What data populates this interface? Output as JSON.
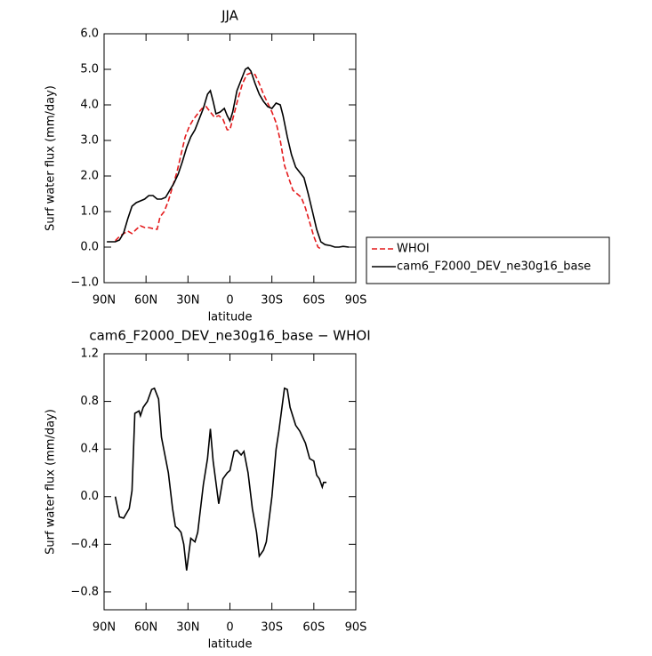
{
  "chart_data": [
    {
      "type": "line",
      "title": "JJA",
      "xlabel": "latitude",
      "ylabel": "Surf water flux (mm/day)",
      "xlim": [
        90,
        -90
      ],
      "xticks": [
        {
          "value": 90,
          "label": "90N"
        },
        {
          "value": 60,
          "label": "60N"
        },
        {
          "value": 30,
          "label": "30N"
        },
        0,
        {
          "value": -30,
          "label": "30S"
        },
        {
          "value": -60,
          "label": "60S"
        },
        {
          "value": -90,
          "label": "90S"
        }
      ],
      "ylim": [
        -1,
        6
      ],
      "yticks": [
        {
          "value": -1,
          "label": "−1.0"
        },
        {
          "value": 0,
          "label": "0.0"
        },
        {
          "value": 1,
          "label": "1.0"
        },
        {
          "value": 2,
          "label": "2.0"
        },
        {
          "value": 3,
          "label": "3.0"
        },
        {
          "value": 4,
          "label": "4.0"
        },
        {
          "value": 5,
          "label": "5.0"
        },
        {
          "value": 6,
          "label": "6.0"
        }
      ],
      "legend": "outside-right",
      "series": [
        {
          "name": "WHOI",
          "color": "#e41a1c",
          "dash": true,
          "x": [
            82,
            79,
            76,
            73,
            70,
            67,
            64,
            61,
            58,
            55,
            52,
            50,
            47,
            44,
            41,
            38,
            35,
            32,
            29,
            26,
            23,
            20,
            17,
            14,
            11,
            8,
            5,
            2,
            0,
            -3,
            -6,
            -9,
            -12,
            -15,
            -18,
            -21,
            -24,
            -27,
            -30,
            -33,
            -36,
            -39,
            -42,
            -45,
            -48,
            -51,
            -54,
            -57,
            -60,
            -63,
            -65
          ],
          "values": [
            0.18,
            0.3,
            0.38,
            0.45,
            0.38,
            0.5,
            0.6,
            0.55,
            0.55,
            0.52,
            0.5,
            0.85,
            1.0,
            1.3,
            1.7,
            2.1,
            2.6,
            3.1,
            3.4,
            3.6,
            3.75,
            3.9,
            3.95,
            3.8,
            3.65,
            3.7,
            3.6,
            3.3,
            3.3,
            3.75,
            4.2,
            4.6,
            4.85,
            4.9,
            4.85,
            4.6,
            4.3,
            4.05,
            3.8,
            3.5,
            3.0,
            2.3,
            1.95,
            1.6,
            1.5,
            1.4,
            1.1,
            0.7,
            0.3,
            0.0,
            -0.05
          ]
        },
        {
          "name": "cam6_F2000_DEV_ne30g16_base",
          "color": "#000000",
          "dash": false,
          "x": [
            88,
            82,
            79,
            76,
            73,
            70,
            67,
            64,
            61,
            58,
            55,
            52,
            49,
            46,
            43,
            40,
            37,
            34,
            31,
            28,
            25,
            22,
            19,
            16,
            14,
            12,
            10,
            7,
            4,
            2,
            0,
            -2,
            -5,
            -8,
            -11,
            -13,
            -15,
            -18,
            -21,
            -24,
            -27,
            -30,
            -33,
            -36,
            -38,
            -41,
            -44,
            -47,
            -50,
            -53,
            -56,
            -59,
            -62,
            -65,
            -68,
            -72,
            -75,
            -78,
            -81,
            -85
          ],
          "values": [
            0.15,
            0.15,
            0.2,
            0.4,
            0.8,
            1.15,
            1.25,
            1.3,
            1.35,
            1.45,
            1.45,
            1.35,
            1.35,
            1.4,
            1.6,
            1.8,
            2.05,
            2.4,
            2.8,
            3.1,
            3.3,
            3.6,
            3.9,
            4.3,
            4.4,
            4.1,
            3.75,
            3.8,
            3.9,
            3.7,
            3.55,
            3.8,
            4.4,
            4.7,
            5.0,
            5.05,
            4.95,
            4.6,
            4.3,
            4.1,
            3.95,
            3.9,
            4.05,
            4.0,
            3.7,
            3.1,
            2.6,
            2.25,
            2.1,
            1.95,
            1.5,
            1.0,
            0.5,
            0.15,
            0.07,
            0.04,
            0.0,
            0.0,
            0.02,
            0.0
          ]
        }
      ]
    },
    {
      "type": "line",
      "title": "cam6_F2000_DEV_ne30g16_base − WHOI",
      "xlabel": "latitude",
      "ylabel": "Surf water flux (mm/day)",
      "xlim": [
        90,
        -90
      ],
      "xticks": [
        {
          "value": 90,
          "label": "90N"
        },
        {
          "value": 60,
          "label": "60N"
        },
        {
          "value": 30,
          "label": "30N"
        },
        0,
        {
          "value": -30,
          "label": "30S"
        },
        {
          "value": -60,
          "label": "60S"
        },
        {
          "value": -90,
          "label": "90S"
        }
      ],
      "ylim": [
        -0.95,
        1.2
      ],
      "yticks": [
        {
          "value": -0.8,
          "label": "−0.8"
        },
        {
          "value": -0.4,
          "label": "−0.4"
        },
        {
          "value": 0,
          "label": "0.0"
        },
        0.4,
        0.8,
        1.2
      ],
      "color": "#000000",
      "x": [
        82,
        79,
        76,
        72,
        70,
        68,
        65,
        64,
        62,
        59,
        56,
        54,
        51,
        49,
        44,
        41,
        39,
        37,
        35,
        33,
        31,
        28,
        25,
        23,
        19,
        16,
        14,
        12,
        8,
        5,
        2,
        0,
        -3,
        -5,
        -8,
        -10,
        -13,
        -16,
        -19,
        -21,
        -24,
        -26,
        -30,
        -33,
        -35,
        -39,
        -41,
        -43,
        -47,
        -50,
        -54,
        -57,
        -60,
        -62,
        -64,
        -66,
        -67,
        -69
      ],
      "values": [
        0.0,
        -0.17,
        -0.18,
        -0.1,
        0.05,
        0.7,
        0.72,
        0.68,
        0.75,
        0.8,
        0.9,
        0.91,
        0.82,
        0.5,
        0.2,
        -0.1,
        -0.25,
        -0.27,
        -0.3,
        -0.4,
        -0.62,
        -0.35,
        -0.38,
        -0.3,
        0.1,
        0.32,
        0.57,
        0.3,
        -0.06,
        0.15,
        0.2,
        0.22,
        0.38,
        0.39,
        0.35,
        0.38,
        0.2,
        -0.1,
        -0.3,
        -0.5,
        -0.45,
        -0.38,
        0.0,
        0.4,
        0.55,
        0.91,
        0.9,
        0.75,
        0.6,
        0.55,
        0.45,
        0.32,
        0.3,
        0.18,
        0.15,
        0.08,
        0.12,
        0.12
      ]
    }
  ]
}
